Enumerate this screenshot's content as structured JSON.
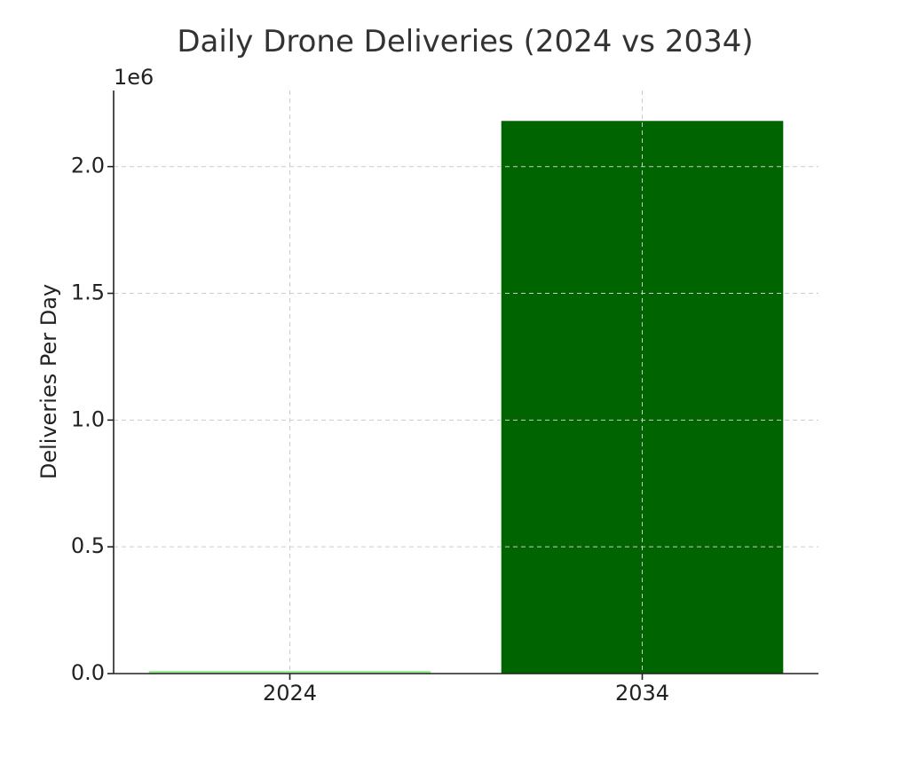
{
  "chart_data": {
    "type": "bar",
    "title": "Daily Drone Deliveries (2024 vs 2034)",
    "xlabel": "",
    "ylabel": "Deliveries Per Day",
    "y_scale_label": "1e6",
    "categories": [
      "2024",
      "2034"
    ],
    "values": [
      10000,
      2180000
    ],
    "colors": [
      "#90ee90",
      "#006400"
    ],
    "ylim": [
      0,
      2300000
    ],
    "yticks": [
      0,
      500000,
      1000000,
      1500000,
      2000000
    ],
    "ytick_labels": [
      "0.0",
      "0.5",
      "1.0",
      "1.5",
      "2.0"
    ],
    "grid": true
  }
}
